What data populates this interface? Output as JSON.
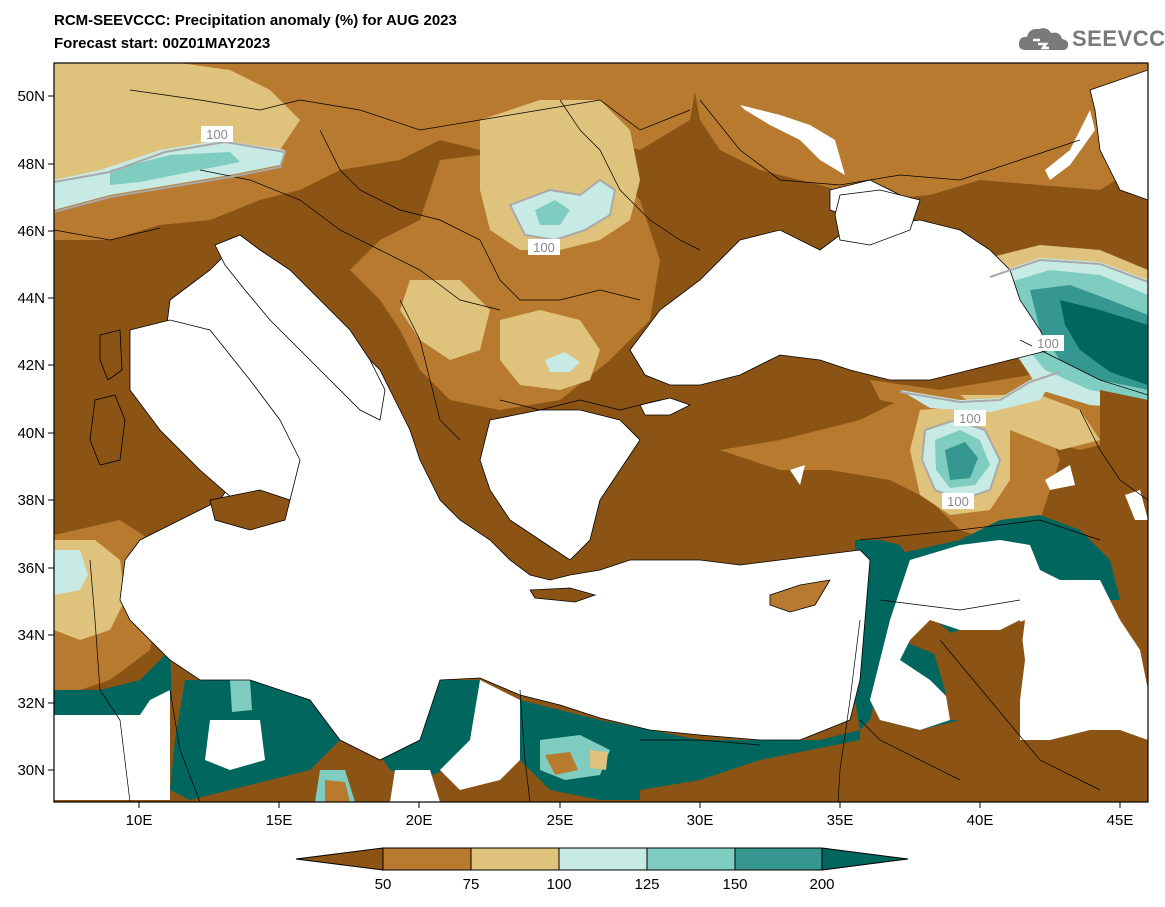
{
  "header": {
    "title_line1": "RCM-SEEVCCC: Precipitation anomaly (%) for AUG 2023",
    "title_line2": "Forecast start: 00Z01MAY2023",
    "logo_text": "SEEVCCC",
    "logo_icon": "cloud-logo-icon"
  },
  "map": {
    "lat_ticks": [
      "50N",
      "48N",
      "46N",
      "44N",
      "42N",
      "40N",
      "38N",
      "36N",
      "34N",
      "32N",
      "30N"
    ],
    "lon_ticks": [
      "10E",
      "15E",
      "20E",
      "25E",
      "30E",
      "35E",
      "40E",
      "45E"
    ],
    "contour_labels": [
      "100",
      "100",
      "100",
      "100",
      "100"
    ]
  },
  "colorbar": {
    "labels": [
      "50",
      "75",
      "100",
      "125",
      "150",
      "200"
    ],
    "colors": {
      "lt50": "#8b5415",
      "50_75": "#b87a2e",
      "75_100": "#dfc27c",
      "100_125": "#c7eae4",
      "125_150": "#7fcdc0",
      "150_200": "#35978f",
      "gt200": "#01665e"
    }
  },
  "colors": {
    "sea": "#ffffff",
    "frame": "#000000"
  }
}
